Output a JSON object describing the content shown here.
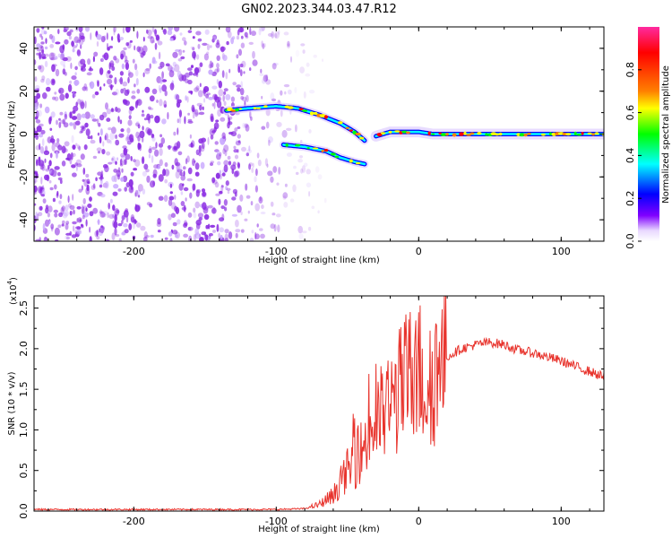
{
  "figure_title": "GN02.2023.344.03.47.R12",
  "colors": {
    "snr_line": "#e8332c",
    "spectrogram_noise": "#8a2be2",
    "colorbar_stops": [
      "#ff2aa0",
      "#ff0000",
      "#ff8000",
      "#ffff00",
      "#00ff00",
      "#00ffff",
      "#0000ff",
      "#8000ff",
      "#e8d8ff",
      "#ffffff"
    ]
  },
  "chart_data": [
    {
      "type": "heatmap",
      "title": "GN02.2023.344.03.47.R12",
      "xlabel": "Height of straight line (km)",
      "ylabel": "Frequency (Hz)",
      "xlim": [
        -270,
        130
      ],
      "ylim": [
        -50,
        50
      ],
      "x_ticks": [
        -200,
        -100,
        0,
        100
      ],
      "y_ticks": [
        -40,
        -20,
        0,
        20,
        40
      ],
      "colorbar": {
        "label": "Normalized spectral amplitude",
        "range": [
          0.0,
          1.0
        ],
        "ticks": [
          0.0,
          0.2,
          0.4,
          0.6,
          0.8
        ]
      },
      "noise_region_x": [
        -270,
        -100
      ],
      "features": [
        {
          "name": "upper branch",
          "x": [
            -135,
            -120,
            -100,
            -85,
            -70,
            -55,
            -45,
            -38
          ],
          "y": [
            11,
            12,
            13,
            12,
            9,
            5,
            1,
            -3
          ]
        },
        {
          "name": "lower branch",
          "x": [
            -95,
            -80,
            -65,
            -55,
            -45,
            -38
          ],
          "y": [
            -5,
            -6,
            -8,
            -11,
            -13,
            -14
          ]
        },
        {
          "name": "converged line",
          "x": [
            -30,
            -20,
            -10,
            0,
            10,
            20,
            40,
            60,
            80,
            100,
            130
          ],
          "y": [
            -1,
            1,
            1,
            1,
            0,
            0,
            0,
            0,
            0,
            0,
            0
          ]
        }
      ]
    },
    {
      "type": "line",
      "xlabel": "Height of straight line (km)",
      "ylabel": "SNR (10 * v/v)",
      "y_multiplier": "(x10",
      "y_multiplier_exp": "4",
      "y_multiplier_close": ")",
      "xlim": [
        -270,
        130
      ],
      "ylim": [
        0,
        2.65
      ],
      "x_ticks": [
        -200,
        -100,
        0,
        100
      ],
      "y_ticks": [
        0.0,
        0.5,
        1.0,
        1.5,
        2.0,
        2.5
      ],
      "series": [
        {
          "x": [
            -270,
            -200,
            -100,
            -80,
            -70,
            -60,
            -55,
            -50,
            -45,
            -40,
            -35,
            -30,
            -25,
            -20,
            -15,
            -10,
            -5,
            0,
            5,
            10,
            15,
            20,
            30,
            40,
            50,
            60,
            70,
            80,
            90,
            100,
            110,
            120,
            130
          ],
          "y": [
            0.02,
            0.02,
            0.02,
            0.03,
            0.08,
            0.2,
            0.35,
            0.5,
            0.6,
            0.75,
            0.95,
            1.1,
            1.2,
            1.3,
            1.45,
            1.55,
            1.7,
            1.75,
            1.55,
            1.65,
            1.8,
            1.9,
            2.0,
            2.05,
            2.08,
            2.05,
            1.98,
            1.95,
            1.9,
            1.85,
            1.78,
            1.72,
            1.65
          ]
        }
      ]
    }
  ]
}
